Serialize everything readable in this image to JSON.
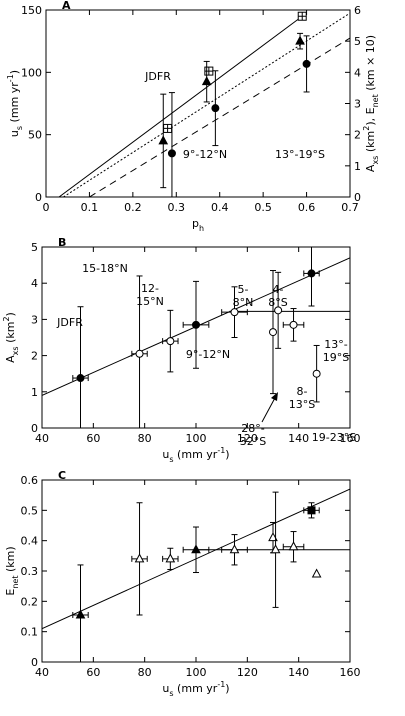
{
  "chart_data": [
    {
      "type": "scatter",
      "label": "A",
      "xlabel": [
        {
          "text": "p"
        },
        {
          "text": "h",
          "shift": "sub"
        }
      ],
      "ylabel": [
        {
          "text": "u"
        },
        {
          "text": "s",
          "shift": "sub"
        },
        {
          "text": " (mm yr"
        },
        {
          "text": "-1",
          "shift": "super"
        },
        {
          "text": ")"
        }
      ],
      "y2label": [
        {
          "text": "A"
        },
        {
          "text": "xs",
          "shift": "sub"
        },
        {
          "text": " (km"
        },
        {
          "text": "2",
          "shift": "super"
        },
        {
          "text": "),  E"
        },
        {
          "text": "net",
          "shift": "sub"
        },
        {
          "text": " (km × 10)"
        }
      ],
      "xlim": [
        0,
        0.7
      ],
      "xticks": [
        0,
        0.1,
        0.2,
        0.3,
        0.4,
        0.5,
        0.6,
        0.7
      ],
      "ylim": [
        0,
        150
      ],
      "yticks": [
        0,
        50,
        100,
        150
      ],
      "y2lim": [
        0,
        6
      ],
      "y2ticks": [
        0,
        1,
        2,
        3,
        4,
        5,
        6
      ],
      "series": [
        {
          "mode": "line",
          "style": "solid",
          "color": "#000000",
          "x": [
            0.03,
            0.59
          ],
          "values": [
            0,
            145
          ]
        },
        {
          "mode": "line",
          "style": "dotted",
          "color": "#000000",
          "axis": "y2",
          "x": [
            0.04,
            0.7
          ],
          "values": [
            0,
            5.9
          ]
        },
        {
          "mode": "line",
          "style": "dashed",
          "color": "#000000",
          "axis": "y2",
          "x": [
            0.1,
            0.7
          ],
          "values": [
            0,
            5.1
          ]
        },
        {
          "mode": "points",
          "marker": "square-cross",
          "filled": false,
          "color": "#000000",
          "x": [
            0.28,
            0.375,
            0.59
          ],
          "values": [
            55,
            101,
            145
          ]
        },
        {
          "mode": "points",
          "marker": "triangle",
          "filled": true,
          "color": "#000000",
          "axis": "y2",
          "x": [
            0.27,
            0.37,
            0.585
          ],
          "values": [
            1.8,
            3.7,
            5.0
          ],
          "yerr": [
            1.5,
            0.65,
            0.25
          ]
        },
        {
          "mode": "points",
          "marker": "circle",
          "filled": true,
          "color": "#000000",
          "axis": "y2",
          "x": [
            0.29,
            0.39,
            0.6
          ],
          "values": [
            1.4,
            2.85,
            4.27
          ],
          "yerr": [
            1.95,
            1.2,
            0.9
          ]
        }
      ],
      "annotations": [
        "JDFR",
        "9°-12°N",
        "13°-19°S"
      ]
    },
    {
      "type": "scatter",
      "label": "B",
      "xlabel": [
        {
          "text": "u"
        },
        {
          "text": "s",
          "shift": "sub"
        },
        {
          "text": " (mm yr"
        },
        {
          "text": "-1",
          "shift": "super"
        },
        {
          "text": ")"
        }
      ],
      "ylabel": [
        {
          "text": "A"
        },
        {
          "text": "xs",
          "shift": "sub"
        },
        {
          "text": " (km"
        },
        {
          "text": "2",
          "shift": "super"
        },
        {
          "text": ")"
        }
      ],
      "xlim": [
        40,
        160
      ],
      "xticks": [
        40,
        60,
        80,
        100,
        120,
        140,
        160
      ],
      "ylim": [
        0,
        5
      ],
      "yticks": [
        0,
        1,
        2,
        3,
        4,
        5
      ],
      "series": [
        {
          "mode": "line",
          "style": "solid",
          "color": "#000000",
          "x": [
            40,
            160
          ],
          "values": [
            0.9,
            4.7
          ]
        },
        {
          "mode": "line",
          "style": "solid",
          "color": "#000000",
          "x": [
            113,
            160
          ],
          "values": [
            3.22,
            3.22
          ]
        },
        {
          "mode": "points",
          "marker": "circle",
          "filled": true,
          "color": "#000000",
          "x": [
            55,
            100,
            145
          ],
          "values": [
            1.38,
            2.85,
            4.27
          ],
          "yerr": [
            1.97,
            1.2,
            0.9
          ],
          "xerr": [
            3,
            5,
            3
          ]
        },
        {
          "mode": "points",
          "marker": "circle",
          "filled": false,
          "color": "#000000",
          "x": [
            78,
            90,
            115,
            130,
            132,
            138,
            147
          ],
          "values": [
            2.05,
            2.4,
            3.2,
            2.65,
            3.25,
            2.85,
            1.5
          ],
          "yerr": [
            2.15,
            0.85,
            0.7,
            1.7,
            1.05,
            0.45,
            0.78
          ],
          "xerr": [
            3,
            3,
            5,
            null,
            null,
            4,
            null
          ]
        }
      ],
      "annotations": [
        "JDFR",
        "15-18°N",
        [
          "12-",
          "15°N"
        ],
        "9°-12°N",
        [
          "5-",
          "8°N"
        ],
        [
          "4-",
          "8°S"
        ],
        [
          "13°-",
          "19°S"
        ],
        [
          "8-",
          "13°S"
        ],
        [
          "28°-",
          "32°S"
        ],
        "19-23°S"
      ]
    },
    {
      "type": "scatter",
      "label": "C",
      "xlabel": [
        {
          "text": "u"
        },
        {
          "text": "s",
          "shift": "sub"
        },
        {
          "text": " (mm yr"
        },
        {
          "text": "-1",
          "shift": "super"
        },
        {
          "text": ")"
        }
      ],
      "ylabel": [
        {
          "text": "E"
        },
        {
          "text": "net",
          "shift": "sub"
        },
        {
          "text": " (km)"
        }
      ],
      "xlim": [
        40,
        160
      ],
      "xticks": [
        40,
        60,
        80,
        100,
        120,
        140,
        160
      ],
      "ylim": [
        0,
        0.6
      ],
      "yticks": [
        0,
        0.1,
        0.2,
        0.3,
        0.4,
        0.5,
        0.6
      ],
      "series": [
        {
          "mode": "line",
          "style": "solid",
          "color": "#000000",
          "x": [
            40,
            160
          ],
          "values": [
            0.11,
            0.57
          ]
        },
        {
          "mode": "line",
          "style": "solid",
          "color": "#000000",
          "x": [
            100,
            160
          ],
          "values": [
            0.37,
            0.37
          ]
        },
        {
          "mode": "points",
          "marker": "triangle",
          "filled": true,
          "color": "#000000",
          "x": [
            55,
            100
          ],
          "values": [
            0.155,
            0.37
          ],
          "yerr": [
            0.165,
            0.075
          ],
          "xerr": [
            3,
            5
          ]
        },
        {
          "mode": "points",
          "marker": "square",
          "filled": true,
          "color": "#000000",
          "x": [
            145
          ],
          "values": [
            0.5
          ],
          "yerr": [
            0.025
          ],
          "xerr": [
            3
          ]
        },
        {
          "mode": "points",
          "marker": "triangle",
          "filled": false,
          "color": "#000000",
          "x": [
            78,
            90,
            115,
            130,
            131,
            138,
            147
          ],
          "values": [
            0.34,
            0.34,
            0.37,
            0.41,
            0.37,
            0.38,
            0.29
          ],
          "yerr": [
            0.185,
            0.035,
            0.05,
            0.05,
            0.19,
            0.05,
            null
          ],
          "xerr": [
            3,
            3,
            5,
            null,
            null,
            4,
            null
          ]
        }
      ]
    }
  ]
}
